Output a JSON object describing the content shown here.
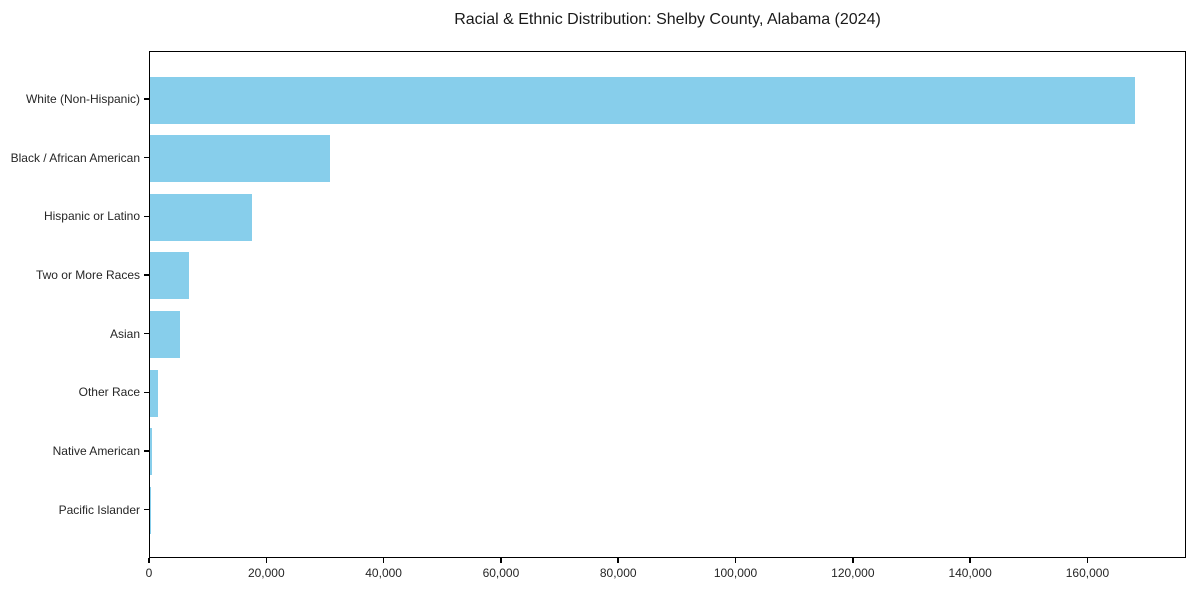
{
  "chart_data": {
    "type": "bar",
    "orientation": "horizontal",
    "title": "Racial & Ethnic Distribution: Shelby County, Alabama (2024)",
    "categories": [
      "White (Non-Hispanic)",
      "Black / African American",
      "Hispanic or Latino",
      "Two or More Races",
      "Asian",
      "Other Race",
      "Native American",
      "Pacific Islander"
    ],
    "values": [
      168300,
      30750,
      17400,
      6600,
      5050,
      1450,
      300,
      100
    ],
    "xlabel": "",
    "ylabel": "",
    "xlim": [
      0,
      176800
    ],
    "xticks": [
      0,
      20000,
      40000,
      60000,
      80000,
      100000,
      120000,
      140000,
      160000
    ],
    "xtick_labels": [
      "0",
      "20,000",
      "40,000",
      "60,000",
      "80,000",
      "100,000",
      "120,000",
      "140,000",
      "160,000"
    ],
    "grid": false,
    "legend": "none",
    "colors": {
      "bar_fill": "#87CEEB",
      "axis_line": "#000000",
      "text": "#262626",
      "background": "#ffffff"
    }
  }
}
